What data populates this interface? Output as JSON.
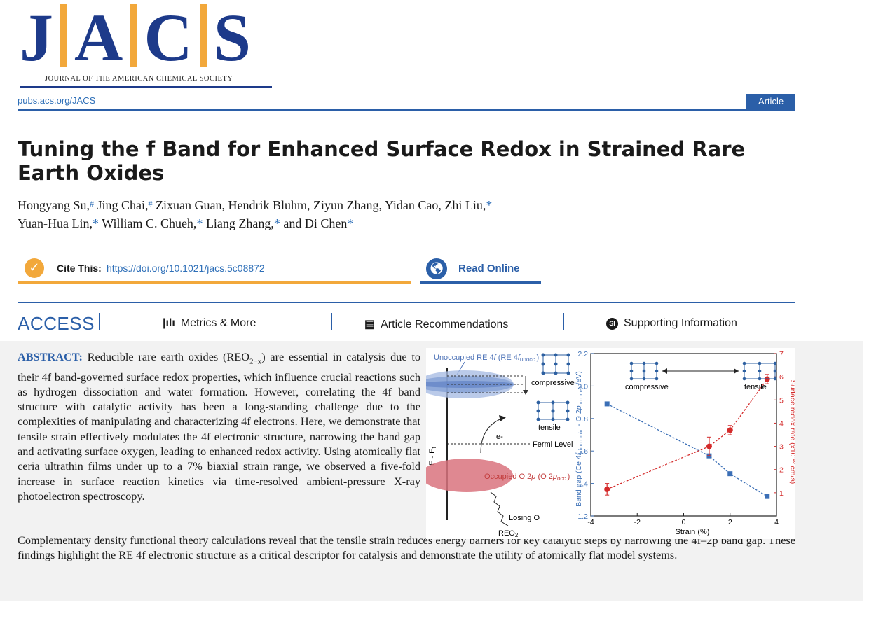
{
  "header": {
    "logo_letters": [
      "J",
      "A",
      "C",
      "S"
    ],
    "logo_subtitle": "JOURNAL OF THE AMERICAN CHEMICAL SOCIETY",
    "site_link": "pubs.acs.org/JACS",
    "article_type": "Article"
  },
  "article": {
    "title": "Tuning the f Band for Enhanced Surface Redox in Strained Rare Earth Oxides",
    "authors": [
      {
        "name": "Hongyang Su,",
        "affil": "#",
        "star": ""
      },
      {
        "name": "Jing Chai,",
        "affil": "#",
        "star": ""
      },
      {
        "name": "Zixuan Guan,",
        "affil": "",
        "star": ""
      },
      {
        "name": "Hendrik Bluhm,",
        "affil": "",
        "star": ""
      },
      {
        "name": "Ziyun Zhang,",
        "affil": "",
        "star": ""
      },
      {
        "name": "Yidan Cao,",
        "affil": "",
        "star": ""
      },
      {
        "name": "Zhi Liu,",
        "affil": "",
        "star": "*"
      },
      {
        "name": "Yuan-Hua Lin,",
        "affil": "",
        "star": "*"
      },
      {
        "name": "William C. Chueh,",
        "affil": "",
        "star": "*"
      },
      {
        "name": "Liang Zhang,",
        "affil": "",
        "star": "*"
      },
      {
        "name": "and Di Chen",
        "affil": "",
        "star": "*"
      }
    ]
  },
  "cite": {
    "label": "Cite This:",
    "doi": "https://doi.org/10.1021/jacs.5c08872",
    "read_online": "Read Online"
  },
  "access_bar": {
    "label": "ACCESS",
    "metrics": "Metrics & More",
    "recommendations": "Article Recommendations",
    "supporting": "Supporting Information",
    "si_badge": "SI"
  },
  "abstract": {
    "heading": "ABSTRACT:",
    "lead": "Reducible rare earth oxides (REO",
    "lead_sub": "2−x",
    "body_part1": ") are essential in catalysis due to their 4f band-governed surface redox properties, which influence crucial reactions such as hydrogen dissociation and water formation. However, correlating the 4f band structure with catalytic activity has been a long-standing challenge due to the complexities of manipulating and characterizing 4f electrons. Here, we demonstrate that tensile strain effectively modulates the 4f electronic structure, narrowing the band gap and activating surface oxygen, leading to enhanced redox activity. Using atomically flat ceria ultrathin films under up to a 7% biaxial strain range, we observed a five-fold increase in surface reaction kinetics via time-resolved ambient-pressure X-ray photoelectron spectroscopy.",
    "body_part2": "Complementary density functional theory calculations reveal that the tensile strain reduces energy barriers for key catalytic steps by narrowing the 4f–2p band gap. These findings highlight the RE 4f electronic structure as a critical descriptor for catalysis and demonstrate the utility of atomically flat model systems."
  },
  "toc_diagram": {
    "unocc_label": "Unoccupied RE 4",
    "unocc_f": "f",
    "unocc_paren": " (RE 4",
    "unocc_sub": "unocc.",
    "compressive": "compressive",
    "tensile": "tensile",
    "electron": "e-",
    "fermi": "Fermi Level",
    "occ_label": "Occupied O 2",
    "occ_p": "p",
    "occ_paren": " (O 2",
    "occ_sub": "occ.",
    "losing": "Losing O",
    "axis_label": "E - E",
    "axis_sub": "f",
    "material": "REO",
    "material_sub": "2"
  },
  "chart_data": {
    "type": "scatter",
    "title": "",
    "xlabel": "Strain (%)",
    "ylabel_left": "Band gap (Ce 4f unocc. min. - O 2p occ. max./eV)",
    "ylabel_right": "Surface redox rate (x10^-10 cm/s)",
    "xlim": [
      -4,
      4
    ],
    "ylim_left": [
      1.2,
      2.2
    ],
    "ylim_right": [
      0,
      7
    ],
    "x_ticks": [
      "-4",
      "-2",
      "0",
      "2",
      "4"
    ],
    "y_left_ticks": [
      "1.2",
      "1.4",
      "1.6",
      "1.8",
      "2.0",
      "2.2"
    ],
    "y_right_ticks": [
      "1",
      "2",
      "3",
      "4",
      "5",
      "6",
      "7"
    ],
    "annotations": [
      "compressive",
      "tensile"
    ],
    "series": [
      {
        "axis": "left",
        "color": "#3b6fb6",
        "marker": "square",
        "x": [
          -3.3,
          1.1,
          2.0,
          3.6
        ],
        "y": [
          1.89,
          1.57,
          1.46,
          1.32
        ]
      },
      {
        "axis": "right",
        "color": "#d42a2a",
        "marker": "circle",
        "x": [
          -3.3,
          1.1,
          2.0,
          3.6
        ],
        "y": [
          1.15,
          3.0,
          3.7,
          5.9
        ],
        "err": [
          0.25,
          0.4,
          0.2,
          0.2
        ]
      }
    ]
  }
}
